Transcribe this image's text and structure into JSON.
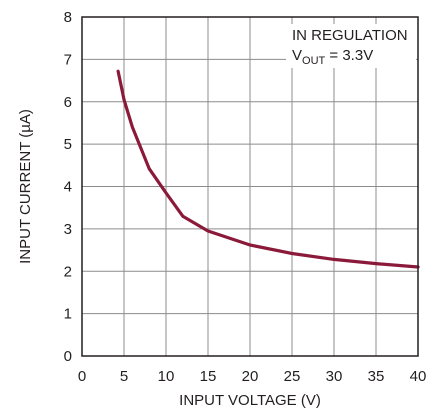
{
  "chart_data": {
    "type": "line",
    "xlabel": "INPUT VOLTAGE (V)",
    "ylabel": "INPUT CURRENT (µA)",
    "xlim": [
      0,
      40
    ],
    "ylim": [
      0,
      8
    ],
    "x_ticks": [
      "0",
      "5",
      "10",
      "15",
      "20",
      "25",
      "30",
      "35",
      "40"
    ],
    "y_ticks": [
      "0",
      "1",
      "2",
      "3",
      "4",
      "5",
      "6",
      "7",
      "8"
    ],
    "grid": true,
    "annotation": {
      "line1": "IN REGULATION",
      "line2_main": "V",
      "line2_sub": "OUT",
      "line2_rest": " = 3.3V"
    },
    "series": [
      {
        "color": "#8b1a3a",
        "x": [
          4.3,
          5,
          6,
          8,
          10,
          12,
          15,
          20,
          25,
          30,
          35,
          40
        ],
        "y": [
          6.72,
          6.05,
          5.4,
          4.42,
          3.85,
          3.3,
          2.95,
          2.62,
          2.42,
          2.28,
          2.18,
          2.1
        ]
      }
    ]
  }
}
